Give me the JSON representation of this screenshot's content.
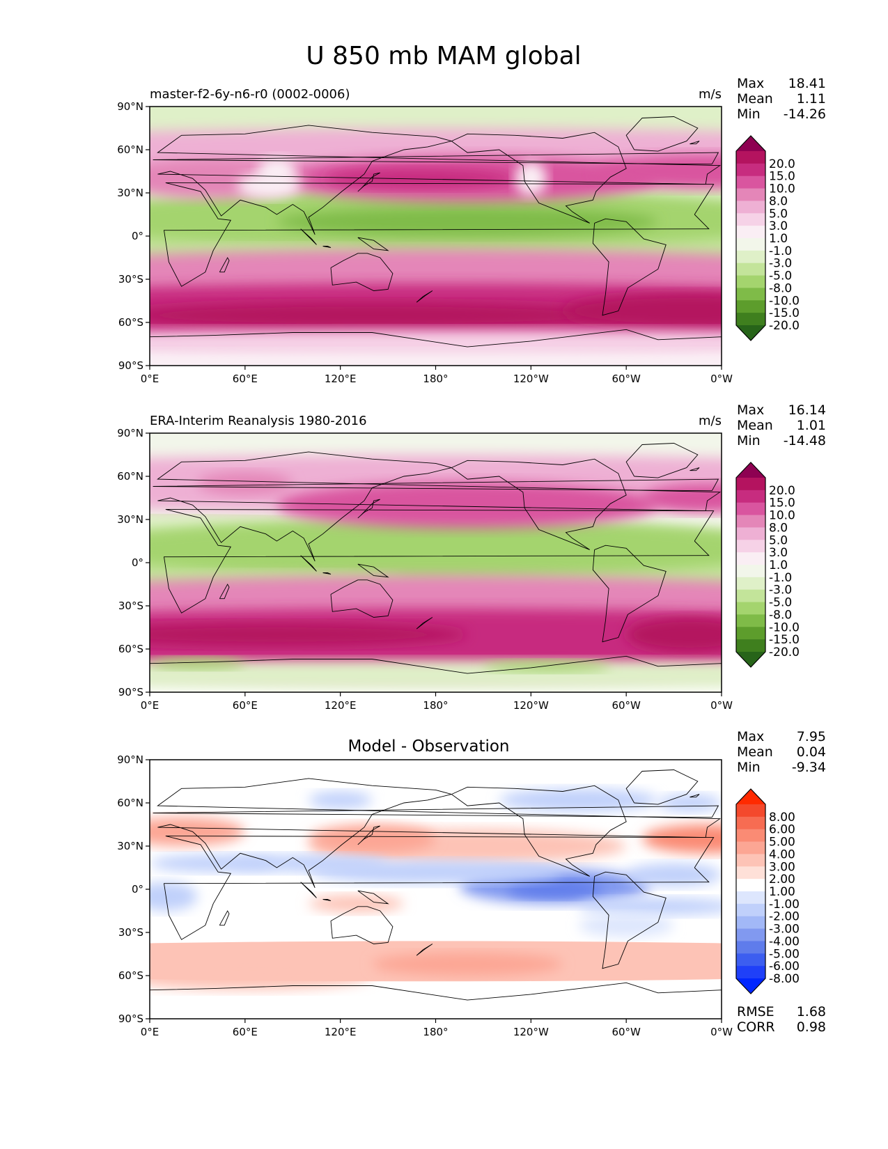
{
  "title": "U 850 mb MAM global",
  "chart_data": [
    {
      "type": "heatmap",
      "title": "master-f2-6y-n6-r0 (0002-0006)",
      "units": "m/s",
      "stats": [
        {
          "label": "Max",
          "value": "18.41"
        },
        {
          "label": "Mean",
          "value": "1.11"
        },
        {
          "label": "Min",
          "value": "-14.26"
        }
      ],
      "xticks": [
        "0°E",
        "60°E",
        "120°E",
        "180°",
        "120°W",
        "60°W",
        "0°W"
      ],
      "yticks": [
        "90°N",
        "60°N",
        "30°N",
        "0°",
        "30°S",
        "60°S",
        "90°S"
      ],
      "xlim": [
        0,
        360
      ],
      "ylim": [
        -90,
        90
      ],
      "colorbar": {
        "labels": [
          "20.0",
          "15.0",
          "10.0",
          "8.0",
          "5.0",
          "3.0",
          "1.0",
          "-1.0",
          "-3.0",
          "-5.0",
          "-8.0",
          "-10.0",
          "-15.0",
          "-20.0"
        ],
        "colors": [
          "#8e0152",
          "#b4135f",
          "#c72c7f",
          "#d9559f",
          "#e486b8",
          "#eeb0d4",
          "#f6d2e7",
          "#faeef4",
          "#f2f6ea",
          "#dff0c8",
          "#c3e49a",
          "#a4d46e",
          "#7fbb48",
          "#5d9d2c",
          "#3f7f1e",
          "#276419"
        ]
      }
    },
    {
      "type": "heatmap",
      "title": "ERA-Interim Reanalysis 1980-2016",
      "units": "m/s",
      "stats": [
        {
          "label": "Max",
          "value": "16.14"
        },
        {
          "label": "Mean",
          "value": "1.01"
        },
        {
          "label": "Min",
          "value": "-14.48"
        }
      ],
      "xticks": [
        "0°E",
        "60°E",
        "120°E",
        "180°",
        "120°W",
        "60°W",
        "0°W"
      ],
      "yticks": [
        "90°N",
        "60°N",
        "30°N",
        "0°",
        "30°S",
        "60°S",
        "90°S"
      ],
      "xlim": [
        0,
        360
      ],
      "ylim": [
        -90,
        90
      ],
      "colorbar": {
        "labels": [
          "20.0",
          "15.0",
          "10.0",
          "8.0",
          "5.0",
          "3.0",
          "1.0",
          "-1.0",
          "-3.0",
          "-5.0",
          "-8.0",
          "-10.0",
          "-15.0",
          "-20.0"
        ],
        "colors": [
          "#8e0152",
          "#b4135f",
          "#c72c7f",
          "#d9559f",
          "#e486b8",
          "#eeb0d4",
          "#f6d2e7",
          "#faeef4",
          "#f2f6ea",
          "#dff0c8",
          "#c3e49a",
          "#a4d46e",
          "#7fbb48",
          "#5d9d2c",
          "#3f7f1e",
          "#276419"
        ]
      }
    },
    {
      "type": "heatmap",
      "title": "Model - Observation",
      "stats": [
        {
          "label": "Max",
          "value": "7.95"
        },
        {
          "label": "Mean",
          "value": "0.04"
        },
        {
          "label": "Min",
          "value": "-9.34"
        }
      ],
      "extra_stats": [
        {
          "label": "RMSE",
          "value": "1.68"
        },
        {
          "label": "CORR",
          "value": "0.98"
        }
      ],
      "xticks": [
        "0°E",
        "60°E",
        "120°E",
        "180°",
        "120°W",
        "60°W",
        "0°W"
      ],
      "yticks": [
        "90°N",
        "60°N",
        "30°N",
        "0°",
        "30°S",
        "60°S",
        "90°S"
      ],
      "xlim": [
        0,
        360
      ],
      "ylim": [
        -90,
        90
      ],
      "colorbar": {
        "labels": [
          "8.00",
          "6.00",
          "5.00",
          "4.00",
          "3.00",
          "2.00",
          "1.00",
          "-1.00",
          "-2.00",
          "-3.00",
          "-4.00",
          "-5.00",
          "-6.00",
          "-8.00"
        ],
        "colors": [
          "#ff2a00",
          "#f4492c",
          "#f76c52",
          "#fa8b74",
          "#fca694",
          "#fdc3b6",
          "#fee0d8",
          "#ffffff",
          "#dde6fd",
          "#c0d0fb",
          "#a2b8f7",
          "#8199f0",
          "#5f7ceb",
          "#3c5ef0",
          "#1f40f8",
          "#0026ff"
        ]
      }
    }
  ]
}
